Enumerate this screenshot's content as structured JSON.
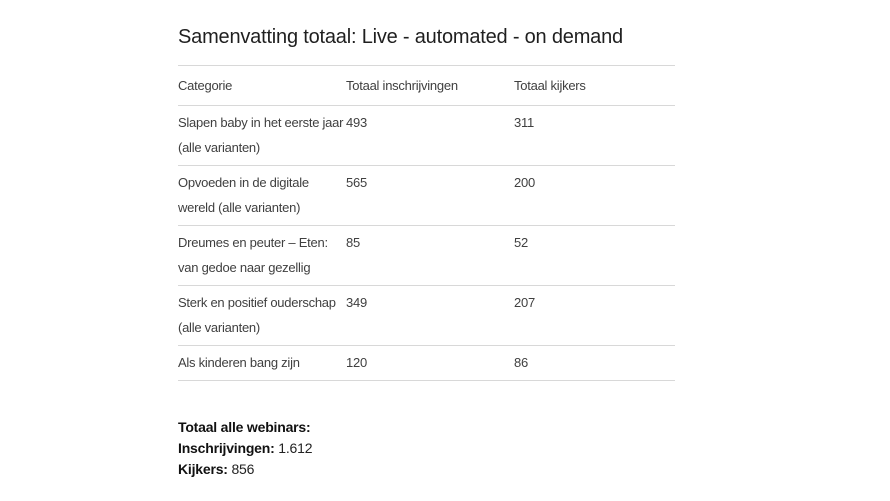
{
  "page": {
    "title": "Samenvatting totaal: Live - automated - on demand"
  },
  "table": {
    "columns": [
      "Categorie",
      "Totaal inschrijvingen",
      "Totaal kijkers"
    ],
    "rows": [
      {
        "category": [
          "Slapen baby in het eerste jaar",
          "(alle varianten)"
        ],
        "inschrijvingen": "493",
        "kijkers": "311"
      },
      {
        "category": [
          "Opvoeden in de digitale",
          "wereld (alle varianten)"
        ],
        "inschrijvingen": "565",
        "kijkers": "200"
      },
      {
        "category": [
          "Dreumes en peuter – Eten:",
          "van gedoe naar gezellig"
        ],
        "inschrijvingen": "85",
        "kijkers": "52"
      },
      {
        "category": [
          "Sterk en positief ouderschap",
          "(alle varianten)"
        ],
        "inschrijvingen": "349",
        "kijkers": "207"
      },
      {
        "category": [
          "Als kinderen bang zijn"
        ],
        "inschrijvingen": "120",
        "kijkers": "86"
      }
    ]
  },
  "summary": {
    "heading": "Totaal alle webinars:",
    "inschrijvingen_label": "Inschrijvingen:",
    "inschrijvingen_value": "1.612",
    "kijkers_label": "Kijkers:",
    "kijkers_value": "856"
  },
  "colors": {
    "background": "#ffffff",
    "title_text": "#1f1f1f",
    "body_text": "#404040",
    "summary_text": "#111111",
    "divider_line": "#d8d8d8"
  }
}
